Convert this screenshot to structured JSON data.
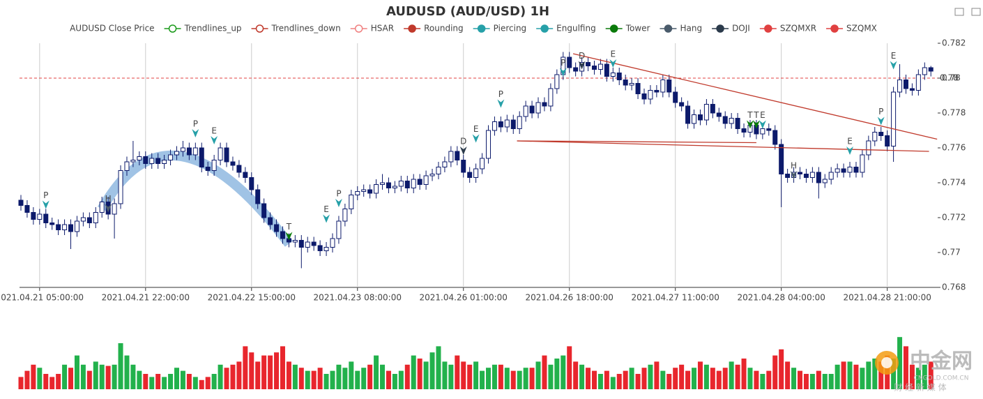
{
  "chart_data": {
    "type": "candlestick",
    "title": "AUDUSD (AUD/USD) 1H",
    "legend": [
      {
        "name": "AUDUSD Close Price",
        "color": "#0c1a6b",
        "icon": "none"
      },
      {
        "name": "Trendlines_up",
        "color": "#1a9a1a",
        "icon": "line-hollow"
      },
      {
        "name": "Trendlines_down",
        "color": "#c0392b",
        "icon": "line-hollow"
      },
      {
        "name": "HSAR",
        "color": "#f08080",
        "icon": "line-hollow"
      },
      {
        "name": "Rounding",
        "color": "#c0392b",
        "icon": "line-dot"
      },
      {
        "name": "Piercing",
        "color": "#26a0a8",
        "icon": "dot"
      },
      {
        "name": "Engulfing",
        "color": "#26a0a8",
        "icon": "dot"
      },
      {
        "name": "Tower",
        "color": "#0a7a0a",
        "icon": "dot"
      },
      {
        "name": "Hang",
        "color": "#4a5b6b",
        "icon": "dot"
      },
      {
        "name": "DOJI",
        "color": "#2b3a4b",
        "icon": "dot"
      },
      {
        "name": "SZQMXR",
        "color": "#e04040",
        "icon": "dot"
      },
      {
        "name": "SZQMX",
        "color": "#e04040",
        "icon": "dot"
      }
    ],
    "categories": [
      null,
      null,
      null,
      "2021.04.21 05:00:00",
      null,
      null,
      null,
      null,
      null,
      null,
      null,
      null,
      null,
      null,
      null,
      null,
      null,
      null,
      null,
      null,
      "2021.04.21 22:00:00",
      null,
      null,
      null,
      null,
      null,
      null,
      null,
      null,
      null,
      null,
      null,
      null,
      null,
      null,
      null,
      null,
      "2021.04.22 15:00:00",
      null,
      null,
      null,
      null,
      null,
      null,
      null,
      null,
      null,
      null,
      null,
      null,
      null,
      null,
      null,
      null,
      "2021.04.23 08:00:00",
      null,
      null,
      null,
      null,
      null,
      null,
      null,
      null,
      null,
      null,
      null,
      null,
      null,
      null,
      null,
      null,
      "2021.04.26 01:00:00",
      null,
      null,
      null,
      null,
      null,
      null,
      null,
      null,
      null,
      null,
      null,
      null,
      null,
      null,
      null,
      null,
      "2021.04.26 18:00:00",
      null,
      null,
      null,
      null,
      null,
      null,
      null,
      null,
      null,
      null,
      null,
      null,
      null,
      null,
      null,
      null,
      "2021.04.27 11:00:00",
      null,
      null,
      null,
      null,
      null,
      null,
      null,
      null,
      null,
      null,
      null,
      null,
      null,
      null,
      null,
      null,
      "2021.04.28 04:00:00",
      null,
      null,
      null,
      null,
      null,
      null,
      null,
      null,
      null,
      null,
      null,
      null,
      null,
      null,
      null,
      null,
      "2021.04.28 21:00:00",
      null,
      null,
      null,
      null,
      null,
      null,
      null
    ],
    "open": [
      0.773,
      0.7727,
      0.7723,
      0.7719,
      0.7722,
      0.7717,
      0.7716,
      0.7713,
      0.7716,
      0.7712,
      0.7718,
      0.772,
      0.7717,
      0.7723,
      0.7729,
      0.7722,
      0.7728,
      0.7747,
      0.7752,
      0.7753,
      0.7755,
      0.7751,
      0.7754,
      0.7751,
      0.7753,
      0.7756,
      0.7758,
      0.776,
      0.7756,
      0.776,
      0.7749,
      0.7747,
      0.7753,
      0.776,
      0.7752,
      0.775,
      0.7746,
      0.7743,
      0.7736,
      0.7728,
      0.772,
      0.7716,
      0.7712,
      0.7708,
      0.7706,
      0.7707,
      0.7703,
      0.7706,
      0.7704,
      0.7701,
      0.7703,
      0.7708,
      0.7718,
      0.7725,
      0.7733,
      0.7735,
      0.7736,
      0.7734,
      0.7739,
      0.774,
      0.7737,
      0.7738,
      0.7741,
      0.7737,
      0.7742,
      0.7739,
      0.7744,
      0.7745,
      0.7749,
      0.7752,
      0.7758,
      0.7753,
      0.7746,
      0.7743,
      0.7748,
      0.7754,
      0.777,
      0.7775,
      0.7772,
      0.7776,
      0.7771,
      0.7778,
      0.7784,
      0.778,
      0.7786,
      0.7784,
      0.7794,
      0.7802,
      0.7812,
      0.7806,
      0.7804,
      0.7809,
      0.7807,
      0.7805,
      0.7808,
      0.7801,
      0.7803,
      0.7799,
      0.7796,
      0.7797,
      0.7791,
      0.7788,
      0.7793,
      0.7792,
      0.7799,
      0.7792,
      0.7786,
      0.7784,
      0.7774,
      0.7779,
      0.7776,
      0.7785,
      0.778,
      0.7778,
      0.7774,
      0.7777,
      0.7771,
      0.7769,
      0.7773,
      0.7768,
      0.7771,
      0.777,
      0.7762,
      0.7745,
      0.7743,
      0.7746,
      0.7745,
      0.7743,
      0.7746,
      0.774,
      0.7742,
      0.7746,
      0.7748,
      0.7746,
      0.7749,
      0.7746,
      0.7756,
      0.7764,
      0.7769,
      0.7767,
      0.7761,
      0.7792,
      0.7799,
      0.7794,
      0.7793,
      0.7802,
      0.7806
    ],
    "high": [
      0.7733,
      0.773,
      0.7726,
      0.7725,
      0.7725,
      0.772,
      0.7719,
      0.7719,
      0.7719,
      0.7721,
      0.7723,
      0.7723,
      0.7726,
      0.7732,
      0.7732,
      0.7731,
      0.775,
      0.7755,
      0.7764,
      0.7758,
      0.7758,
      0.7757,
      0.7757,
      0.7756,
      0.7759,
      0.7761,
      0.7764,
      0.7763,
      0.7763,
      0.7763,
      0.7752,
      0.7756,
      0.7763,
      0.7763,
      0.7755,
      0.7753,
      0.7749,
      0.7746,
      0.7739,
      0.7731,
      0.7723,
      0.7719,
      0.7715,
      0.7711,
      0.771,
      0.771,
      0.7709,
      0.7709,
      0.7707,
      0.7706,
      0.7711,
      0.7721,
      0.7728,
      0.7736,
      0.7738,
      0.7739,
      0.7739,
      0.7742,
      0.7745,
      0.7743,
      0.7741,
      0.7744,
      0.7744,
      0.7745,
      0.7745,
      0.7747,
      0.7748,
      0.7752,
      0.7755,
      0.7761,
      0.7761,
      0.7756,
      0.7749,
      0.7751,
      0.7757,
      0.7773,
      0.7778,
      0.7778,
      0.7779,
      0.7779,
      0.7781,
      0.7787,
      0.7787,
      0.7789,
      0.7789,
      0.7797,
      0.7805,
      0.7815,
      0.7815,
      0.7809,
      0.7812,
      0.7812,
      0.781,
      0.7811,
      0.7811,
      0.7806,
      0.7806,
      0.7802,
      0.78,
      0.78,
      0.7794,
      0.7796,
      0.7796,
      0.7802,
      0.7802,
      0.7795,
      0.7789,
      0.7787,
      0.7782,
      0.7782,
      0.7788,
      0.7788,
      0.7783,
      0.7781,
      0.778,
      0.778,
      0.7774,
      0.7776,
      0.7776,
      0.7774,
      0.7774,
      0.7773,
      0.7765,
      0.7748,
      0.7749,
      0.7749,
      0.7748,
      0.7749,
      0.7749,
      0.7745,
      0.7749,
      0.7751,
      0.7751,
      0.7752,
      0.7752,
      0.7759,
      0.7767,
      0.7772,
      0.7772,
      0.777,
      0.7795,
      0.7808,
      0.7802,
      0.7797,
      0.7805,
      0.7809,
      0.7807
    ],
    "low": [
      0.7724,
      0.772,
      0.7716,
      0.7716,
      0.7714,
      0.7713,
      0.771,
      0.771,
      0.7702,
      0.7709,
      0.7715,
      0.7714,
      0.7714,
      0.772,
      0.7719,
      0.7708,
      0.7725,
      0.7744,
      0.7749,
      0.775,
      0.7748,
      0.7748,
      0.7748,
      0.7748,
      0.775,
      0.7753,
      0.7755,
      0.7753,
      0.7753,
      0.7746,
      0.7744,
      0.7744,
      0.775,
      0.7749,
      0.7747,
      0.7743,
      0.774,
      0.7733,
      0.7725,
      0.7717,
      0.7713,
      0.7709,
      0.7705,
      0.7703,
      0.7703,
      0.7691,
      0.77,
      0.7701,
      0.7698,
      0.7698,
      0.77,
      0.7705,
      0.7715,
      0.7722,
      0.773,
      0.7732,
      0.7731,
      0.7731,
      0.7736,
      0.7734,
      0.7734,
      0.7735,
      0.7734,
      0.7734,
      0.7736,
      0.7736,
      0.7741,
      0.7742,
      0.7746,
      0.7749,
      0.775,
      0.7743,
      0.774,
      0.774,
      0.7745,
      0.7751,
      0.7767,
      0.7769,
      0.7769,
      0.7768,
      0.7768,
      0.7775,
      0.7777,
      0.7777,
      0.7781,
      0.7781,
      0.7791,
      0.7799,
      0.7803,
      0.7801,
      0.7801,
      0.7804,
      0.7802,
      0.7802,
      0.7798,
      0.7798,
      0.7796,
      0.7793,
      0.7793,
      0.7788,
      0.7785,
      0.7785,
      0.7789,
      0.7789,
      0.7789,
      0.7783,
      0.7781,
      0.7771,
      0.7771,
      0.7773,
      0.7773,
      0.7777,
      0.7775,
      0.7771,
      0.7771,
      0.7768,
      0.7766,
      0.7766,
      0.7765,
      0.7765,
      0.7767,
      0.7759,
      0.7726,
      0.774,
      0.774,
      0.7742,
      0.774,
      0.774,
      0.7731,
      0.7737,
      0.7739,
      0.7743,
      0.7743,
      0.7743,
      0.7743,
      0.7743,
      0.7753,
      0.7761,
      0.7764,
      0.7758,
      0.7752,
      0.7789,
      0.7791,
      0.779,
      0.779,
      0.7799,
      0.7801
    ],
    "close": [
      0.7727,
      0.7723,
      0.7719,
      0.7722,
      0.7717,
      0.7716,
      0.7713,
      0.7716,
      0.7712,
      0.7718,
      0.772,
      0.7717,
      0.7723,
      0.7729,
      0.7722,
      0.7728,
      0.7747,
      0.7752,
      0.7753,
      0.7755,
      0.7751,
      0.7754,
      0.7751,
      0.7753,
      0.7756,
      0.7758,
      0.776,
      0.7756,
      0.776,
      0.7749,
      0.7747,
      0.7753,
      0.776,
      0.7752,
      0.775,
      0.7746,
      0.7743,
      0.7736,
      0.7728,
      0.772,
      0.7716,
      0.7712,
      0.7708,
      0.7706,
      0.7707,
      0.7703,
      0.7706,
      0.7704,
      0.7701,
      0.7703,
      0.7708,
      0.7718,
      0.7725,
      0.7733,
      0.7735,
      0.7736,
      0.7734,
      0.7739,
      0.774,
      0.7737,
      0.7738,
      0.7741,
      0.7737,
      0.7742,
      0.7739,
      0.7744,
      0.7745,
      0.7749,
      0.7752,
      0.7758,
      0.7753,
      0.7746,
      0.7743,
      0.7748,
      0.7754,
      0.777,
      0.7775,
      0.7772,
      0.7776,
      0.7771,
      0.7778,
      0.7784,
      0.778,
      0.7786,
      0.7784,
      0.7794,
      0.7802,
      0.7812,
      0.7806,
      0.7804,
      0.7809,
      0.7807,
      0.7805,
      0.7808,
      0.7801,
      0.7803,
      0.7799,
      0.7796,
      0.7797,
      0.7791,
      0.7788,
      0.7793,
      0.7792,
      0.7799,
      0.7792,
      0.7786,
      0.7784,
      0.7774,
      0.7779,
      0.7776,
      0.7785,
      0.778,
      0.7778,
      0.7774,
      0.7777,
      0.7771,
      0.7769,
      0.7773,
      0.7768,
      0.7771,
      0.777,
      0.7762,
      0.7745,
      0.7743,
      0.7746,
      0.7745,
      0.7743,
      0.7746,
      0.774,
      0.7742,
      0.7746,
      0.7748,
      0.7746,
      0.7749,
      0.7746,
      0.7756,
      0.7764,
      0.7769,
      0.7767,
      0.7761,
      0.7792,
      0.7799,
      0.7794,
      0.7793,
      0.7802,
      0.7806,
      0.7804
    ],
    "volume": [
      20,
      30,
      40,
      35,
      25,
      20,
      25,
      40,
      35,
      55,
      40,
      30,
      45,
      40,
      38,
      40,
      75,
      55,
      40,
      30,
      25,
      20,
      25,
      20,
      25,
      35,
      30,
      25,
      20,
      15,
      20,
      25,
      40,
      35,
      40,
      45,
      70,
      60,
      45,
      55,
      55,
      60,
      70,
      45,
      40,
      35,
      30,
      30,
      35,
      25,
      30,
      40,
      35,
      45,
      30,
      35,
      40,
      55,
      40,
      30,
      25,
      30,
      40,
      55,
      50,
      45,
      60,
      70,
      45,
      40,
      55,
      45,
      40,
      45,
      30,
      35,
      40,
      40,
      35,
      30,
      30,
      35,
      35,
      45,
      55,
      40,
      50,
      55,
      70,
      45,
      40,
      35,
      30,
      25,
      30,
      20,
      25,
      30,
      35,
      25,
      35,
      40,
      45,
      30,
      25,
      35,
      40,
      30,
      35,
      45,
      40,
      35,
      30,
      35,
      45,
      40,
      50,
      35,
      30,
      25,
      30,
      55,
      65,
      45,
      35,
      30,
      25,
      25,
      30,
      25,
      25,
      40,
      45,
      45,
      40,
      35,
      45,
      50,
      45,
      55,
      50,
      85,
      70,
      40,
      35,
      40,
      45
    ],
    "up_color": "#ffffff",
    "down_color": "#0c1a6b",
    "edge_color": "#0c1a6b",
    "volume_up_color": "#22b14c",
    "volume_down_color": "#e8262d",
    "ylim": [
      0.768,
      0.782
    ],
    "yticks": [
      0.768,
      0.77,
      0.772,
      0.774,
      0.776,
      0.778,
      0.78,
      0.782
    ],
    "volume_ylim": [
      0,
      100
    ],
    "hline": {
      "value": 0.78,
      "color": "#e04040"
    },
    "rounding": {
      "x": [
        13,
        26,
        43
      ],
      "y": [
        0.7725,
        0.7755,
        0.7705
      ],
      "color": "#8fb8e0"
    },
    "trendlines": [
      {
        "x": [
          88.6,
          147
        ],
        "y": [
          0.7814,
          0.7765
        ],
        "color": "#c0392b"
      },
      {
        "x": [
          79.6,
          145.7
        ],
        "y": [
          0.7764,
          0.7758
        ],
        "color": "#c0392b"
      },
      {
        "x": [
          79.6,
          118
        ],
        "y": [
          0.7764,
          0.7763
        ],
        "color": "#c0392b"
      }
    ],
    "signals": [
      {
        "label": "P",
        "x": 4,
        "value": 0.7725,
        "color": "#26a0a8"
      },
      {
        "label": "H",
        "x": 14,
        "value": 0.7723,
        "color": "#4a5b6b"
      },
      {
        "label": "P",
        "x": 28,
        "value": 0.7766,
        "color": "#26a0a8"
      },
      {
        "label": "E",
        "x": 31,
        "value": 0.7762,
        "color": "#26a0a8"
      },
      {
        "label": "T",
        "x": 43,
        "value": 0.7707,
        "color": "#0a7a0a"
      },
      {
        "label": "E",
        "x": 49,
        "value": 0.7717,
        "color": "#26a0a8"
      },
      {
        "label": "P",
        "x": 51,
        "value": 0.7726,
        "color": "#26a0a8"
      },
      {
        "label": "D",
        "x": 71,
        "value": 0.7756,
        "color": "#2b3a4b"
      },
      {
        "label": "E",
        "x": 73,
        "value": 0.7763,
        "color": "#26a0a8"
      },
      {
        "label": "P",
        "x": 77,
        "value": 0.7783,
        "color": "#26a0a8"
      },
      {
        "label": "P",
        "x": 87,
        "value": 0.7801,
        "color": "#26a0a8"
      },
      {
        "label": "D",
        "x": 90,
        "value": 0.7805,
        "color": "#2b3a4b"
      },
      {
        "label": "E",
        "x": 95,
        "value": 0.7806,
        "color": "#26a0a8"
      },
      {
        "label": "T",
        "x": 117,
        "value": 0.7771,
        "color": "#0a7a0a"
      },
      {
        "label": "T",
        "x": 118,
        "value": 0.7771,
        "color": "#0a7a0a"
      },
      {
        "label": "E",
        "x": 119,
        "value": 0.7771,
        "color": "#26a0a8"
      },
      {
        "label": "H",
        "x": 124,
        "value": 0.7742,
        "color": "#4a5b6b"
      },
      {
        "label": "E",
        "x": 133,
        "value": 0.7756,
        "color": "#26a0a8"
      },
      {
        "label": "P",
        "x": 138,
        "value": 0.7773,
        "color": "#26a0a8"
      },
      {
        "label": "E",
        "x": 140,
        "value": 0.7805,
        "color": "#26a0a8"
      }
    ],
    "watermark": {
      "name": "中金网",
      "site": "CNGOLD.COM.CN",
      "tagline": "财 经 新 媒 体"
    }
  }
}
